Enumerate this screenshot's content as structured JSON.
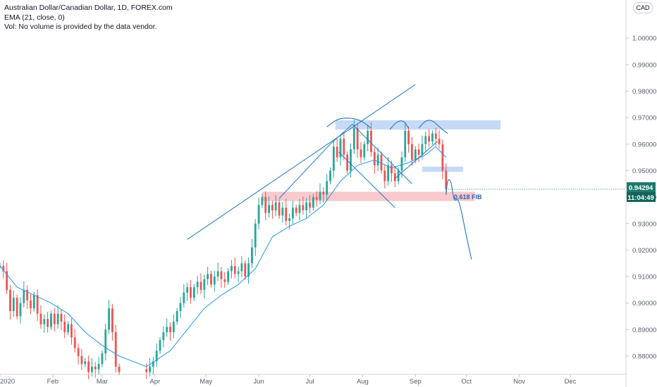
{
  "legend": {
    "symbol": "Australian Dollar/Canadian Dollar, 1D, FOREX.com",
    "ema": "EMA (21, close, 0)",
    "vol": "Vol: No volume is provided by the data vendor."
  },
  "currency_button": "CAD",
  "price_tag": {
    "value": "0.94294",
    "countdown": "11:04:49"
  },
  "annotations": {
    "fib_label": "0.618 FIB"
  },
  "colors": {
    "up": "#26a69a",
    "down": "#ef5350",
    "ema": "#2196f3",
    "trendline": "#1e78c8",
    "resistance_zone": "#bcd3f4",
    "fib_zone": "#f7c1c4",
    "tag_bg": "#1c7a6d"
  },
  "chart_data": {
    "type": "candlestick",
    "title": "Australian Dollar/Canadian Dollar, 1D, FOREX.com",
    "ylim": [
      0.874,
      1.008
    ],
    "y_ticks": [
      "0.88000",
      "0.89000",
      "0.90000",
      "0.91000",
      "0.92000",
      "0.93000",
      "0.94000",
      "0.95000",
      "0.96000",
      "0.97000",
      "0.98000",
      "0.99000",
      "1.00000"
    ],
    "x_ticks": [
      "2020",
      "Feb",
      "Mar",
      "Apr",
      "May",
      "Jun",
      "Jul",
      "Aug",
      "Sep",
      "Oct",
      "Nov",
      "Dec"
    ],
    "x_tick_days": [
      0,
      31,
      60,
      91,
      121,
      152,
      182,
      213,
      244,
      274,
      305,
      335
    ],
    "x_range_days": [
      0,
      365
    ],
    "last_price": 0.94294,
    "closes": [
      [
        0,
        0.914
      ],
      [
        2,
        0.912
      ],
      [
        4,
        0.905
      ],
      [
        6,
        0.897
      ],
      [
        8,
        0.902
      ],
      [
        10,
        0.895
      ],
      [
        12,
        0.9
      ],
      [
        14,
        0.905
      ],
      [
        16,
        0.901
      ],
      [
        18,
        0.898
      ],
      [
        20,
        0.903
      ],
      [
        22,
        0.896
      ],
      [
        24,
        0.892
      ],
      [
        26,
        0.894
      ],
      [
        28,
        0.891
      ],
      [
        30,
        0.896
      ],
      [
        32,
        0.892
      ],
      [
        34,
        0.896
      ],
      [
        36,
        0.893
      ],
      [
        38,
        0.889
      ],
      [
        40,
        0.892
      ],
      [
        42,
        0.887
      ],
      [
        44,
        0.883
      ],
      [
        46,
        0.88
      ],
      [
        48,
        0.877
      ],
      [
        50,
        0.878
      ],
      [
        52,
        0.874
      ],
      [
        54,
        0.876
      ],
      [
        56,
        0.875
      ],
      [
        58,
        0.877
      ],
      [
        60,
        0.881
      ],
      [
        62,
        0.89
      ],
      [
        64,
        0.898
      ],
      [
        66,
        0.889
      ],
      [
        68,
        0.876
      ],
      [
        70,
        0.874
      ],
      [
        86,
        0.874
      ],
      [
        88,
        0.876
      ],
      [
        90,
        0.878
      ],
      [
        92,
        0.882
      ],
      [
        94,
        0.886
      ],
      [
        96,
        0.889
      ],
      [
        98,
        0.891
      ],
      [
        100,
        0.889
      ],
      [
        102,
        0.893
      ],
      [
        104,
        0.897
      ],
      [
        106,
        0.9
      ],
      [
        108,
        0.904
      ],
      [
        110,
        0.906
      ],
      [
        112,
        0.902
      ],
      [
        114,
        0.906
      ],
      [
        116,
        0.908
      ],
      [
        118,
        0.905
      ],
      [
        120,
        0.909
      ],
      [
        122,
        0.911
      ],
      [
        124,
        0.907
      ],
      [
        126,
        0.91
      ],
      [
        128,
        0.912
      ],
      [
        130,
        0.909
      ],
      [
        132,
        0.908
      ],
      [
        134,
        0.912
      ],
      [
        136,
        0.914
      ],
      [
        138,
        0.911
      ],
      [
        140,
        0.912
      ],
      [
        142,
        0.915
      ],
      [
        144,
        0.91
      ],
      [
        146,
        0.915
      ],
      [
        148,
        0.921
      ],
      [
        150,
        0.93
      ],
      [
        152,
        0.937
      ],
      [
        154,
        0.94
      ],
      [
        156,
        0.934
      ],
      [
        158,
        0.937
      ],
      [
        160,
        0.935
      ],
      [
        162,
        0.938
      ],
      [
        164,
        0.933
      ],
      [
        166,
        0.936
      ],
      [
        168,
        0.931
      ],
      [
        170,
        0.932
      ],
      [
        172,
        0.936
      ],
      [
        174,
        0.934
      ],
      [
        176,
        0.937
      ],
      [
        178,
        0.935
      ],
      [
        180,
        0.938
      ],
      [
        182,
        0.936
      ],
      [
        184,
        0.94
      ],
      [
        186,
        0.939
      ],
      [
        188,
        0.942
      ],
      [
        190,
        0.941
      ],
      [
        192,
        0.946
      ],
      [
        194,
        0.95
      ],
      [
        196,
        0.959
      ],
      [
        198,
        0.955
      ],
      [
        200,
        0.962
      ],
      [
        202,
        0.956
      ],
      [
        204,
        0.95
      ],
      [
        206,
        0.958
      ],
      [
        208,
        0.966
      ],
      [
        210,
        0.958
      ],
      [
        212,
        0.955
      ],
      [
        214,
        0.96
      ],
      [
        216,
        0.965
      ],
      [
        218,
        0.957
      ],
      [
        220,
        0.952
      ],
      [
        222,
        0.956
      ],
      [
        224,
        0.95
      ],
      [
        226,
        0.946
      ],
      [
        228,
        0.952
      ],
      [
        230,
        0.949
      ],
      [
        232,
        0.946
      ],
      [
        234,
        0.95
      ],
      [
        236,
        0.955
      ],
      [
        238,
        0.965
      ],
      [
        240,
        0.96
      ],
      [
        242,
        0.954
      ],
      [
        244,
        0.958
      ],
      [
        246,
        0.956
      ],
      [
        248,
        0.96
      ],
      [
        250,
        0.963
      ],
      [
        252,
        0.961
      ],
      [
        254,
        0.964
      ],
      [
        256,
        0.962
      ],
      [
        258,
        0.96
      ],
      [
        260,
        0.95
      ],
      [
        262,
        0.943
      ]
    ],
    "ema_21": [
      [
        0,
        0.914
      ],
      [
        10,
        0.906
      ],
      [
        20,
        0.903
      ],
      [
        30,
        0.9
      ],
      [
        40,
        0.896
      ],
      [
        50,
        0.889
      ],
      [
        60,
        0.884
      ],
      [
        70,
        0.88
      ],
      [
        86,
        0.876
      ],
      [
        100,
        0.882
      ],
      [
        110,
        0.89
      ],
      [
        120,
        0.898
      ],
      [
        130,
        0.903
      ],
      [
        140,
        0.907
      ],
      [
        150,
        0.913
      ],
      [
        160,
        0.925
      ],
      [
        170,
        0.929
      ],
      [
        180,
        0.932
      ],
      [
        190,
        0.937
      ],
      [
        200,
        0.946
      ],
      [
        210,
        0.952
      ],
      [
        220,
        0.954
      ],
      [
        230,
        0.951
      ],
      [
        240,
        0.953
      ],
      [
        250,
        0.956
      ],
      [
        256,
        0.959
      ],
      [
        262,
        0.955
      ]
    ],
    "zones": [
      {
        "name": "resistance",
        "x": [
          197,
          294
        ],
        "y": [
          0.9655,
          0.969
        ]
      },
      {
        "name": "support",
        "x": [
          248,
          272
        ],
        "y": [
          0.9495,
          0.9515
        ]
      },
      {
        "name": "fib-0.618",
        "x": [
          154,
          279
        ],
        "y": [
          0.9385,
          0.942
        ]
      }
    ],
    "lines": [
      {
        "name": "rising-trendline",
        "points": [
          [
            110,
            0.924
          ],
          [
            244,
            0.9825
          ]
        ]
      },
      {
        "name": "lower-channel",
        "points": [
          [
            164,
            0.9395
          ],
          [
            194,
            0.96
          ],
          [
            207,
            0.9675
          ]
        ]
      },
      {
        "name": "descending-channel-top",
        "points": [
          [
            207,
            0.9675
          ],
          [
            242,
            0.945
          ]
        ]
      },
      {
        "name": "descending-channel-bottom",
        "points": [
          [
            199,
            0.957
          ],
          [
            232,
            0.936
          ]
        ]
      },
      {
        "name": "rising-channel-bottom",
        "points": [
          [
            232,
            0.947
          ],
          [
            257,
            0.961
          ]
        ]
      }
    ],
    "curves": [
      {
        "name": "head-arc",
        "points": [
          [
            192,
            0.9665
          ],
          [
            198,
            0.9695
          ],
          [
            205,
            0.97
          ],
          [
            212,
            0.969
          ],
          [
            218,
            0.966
          ]
        ]
      },
      {
        "name": "right-shoulder-arc",
        "points": [
          [
            229,
            0.9655
          ],
          [
            233,
            0.9685
          ],
          [
            237,
            0.969
          ],
          [
            240,
            0.966
          ]
        ]
      },
      {
        "name": "left-top-arc",
        "points": [
          [
            246,
            0.966
          ],
          [
            250,
            0.969
          ],
          [
            254,
            0.969
          ],
          [
            258,
            0.9665
          ],
          [
            263,
            0.964
          ]
        ]
      },
      {
        "name": "projection",
        "points": [
          [
            262,
            0.941
          ],
          [
            263,
            0.947
          ],
          [
            265,
            0.946
          ],
          [
            266,
            0.941
          ],
          [
            267,
            0.9385
          ],
          [
            269,
            0.9395
          ],
          [
            271,
            0.935
          ],
          [
            274,
            0.925
          ],
          [
            277,
            0.9165
          ]
        ]
      }
    ]
  }
}
